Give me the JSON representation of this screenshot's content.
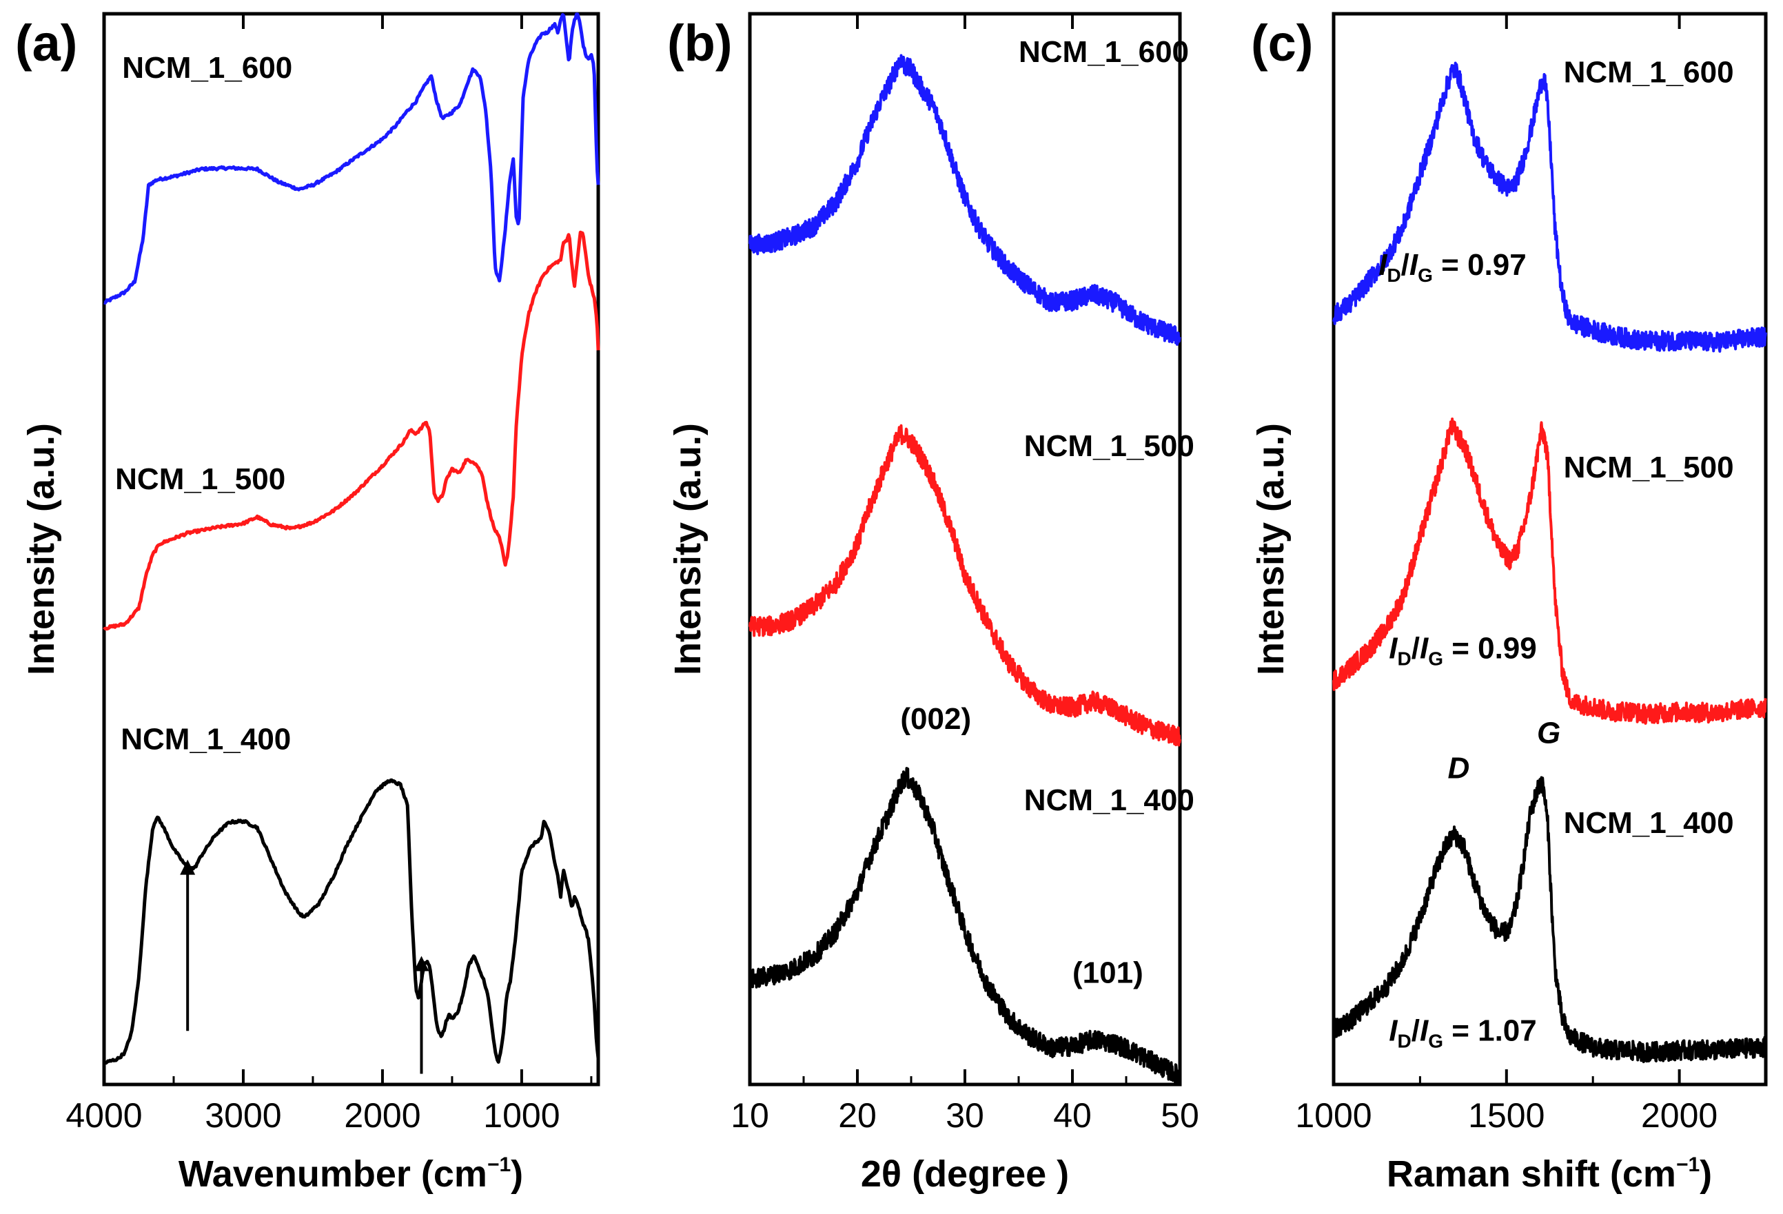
{
  "chart_data": [
    {
      "type": "line",
      "panel": "(a)",
      "xlabel": "Wavenumber (cm",
      "xlabel_sup": "−1",
      "xlabel_end": ")",
      "ylabel": "Intensity (a.u.)",
      "xlim": [
        4000,
        450
      ],
      "ylim": [
        0,
        100
      ],
      "xticks": [
        4000,
        3000,
        2000,
        1000
      ],
      "annotations": [],
      "arrows": [
        {
          "x": 3400,
          "from": 5,
          "to": 21
        },
        {
          "x": 1720,
          "from": 1,
          "to": 12
        }
      ],
      "series": [
        {
          "name": "NCM_1_600",
          "color": "#1a1aff",
          "label_x": 3870,
          "label_y": 94,
          "x": [
            4000,
            3850,
            3780,
            3720,
            3680,
            3620,
            3500,
            3300,
            3100,
            2900,
            2750,
            2600,
            2500,
            2350,
            2200,
            2000,
            1900,
            1830,
            1760,
            1700,
            1650,
            1610,
            1570,
            1500,
            1440,
            1400,
            1350,
            1300,
            1260,
            1220,
            1190,
            1160,
            1120,
            1090,
            1060,
            1040,
            1020,
            990,
            950,
            900,
            850,
            820,
            790,
            760,
            740,
            720,
            700,
            680,
            660,
            640,
            620,
            600,
            580,
            560,
            540,
            520,
            500,
            480,
            460,
            450
          ],
          "y": [
            73,
            74,
            75,
            79,
            84,
            84.5,
            84.8,
            85.5,
            85.6,
            85.5,
            84.3,
            83.6,
            84.0,
            85.1,
            86.5,
            88.3,
            89.6,
            90.8,
            91.8,
            93.2,
            94.2,
            91.8,
            90.2,
            90.8,
            91.6,
            93.2,
            94.8,
            94.2,
            91.2,
            85.2,
            76.2,
            75.0,
            79.5,
            84.0,
            86.5,
            81.2,
            80.0,
            92.2,
            95.7,
            97.2,
            98.2,
            98.2,
            98.7,
            99.0,
            98.2,
            99.5,
            100,
            97.6,
            95.3,
            98.2,
            99.5,
            100,
            99.0,
            97.2,
            96.2,
            95.8,
            96.2,
            95.0,
            86.0,
            84.0
          ]
        },
        {
          "name": "NCM_1_500",
          "color": "#ff1a1a",
          "label_x": 3920,
          "label_y": 55.6,
          "x": [
            4000,
            3850,
            3750,
            3700,
            3650,
            3600,
            3400,
            3200,
            3000,
            2900,
            2800,
            2650,
            2500,
            2350,
            2200,
            2000,
            1850,
            1800,
            1760,
            1720,
            1690,
            1660,
            1630,
            1600,
            1570,
            1540,
            1500,
            1450,
            1400,
            1350,
            1320,
            1280,
            1250,
            1220,
            1200,
            1180,
            1160,
            1140,
            1120,
            1100,
            1080,
            1060,
            1040,
            1000,
            950,
            900,
            850,
            800,
            760,
            720,
            700,
            680,
            660,
            640,
            620,
            600,
            580,
            560,
            540,
            520,
            500,
            480,
            460,
            450
          ],
          "y": [
            42.6,
            43.0,
            44.5,
            47.5,
            49.5,
            50.5,
            51.5,
            52.0,
            52.4,
            53.0,
            52.3,
            51.9,
            52.5,
            53.6,
            55.2,
            57.8,
            60.0,
            61.1,
            60.8,
            61.3,
            61.9,
            61.0,
            55.3,
            54.5,
            55.0,
            56.5,
            57.5,
            57.1,
            58.3,
            58.2,
            57.8,
            56.8,
            54.5,
            53.0,
            52.0,
            51.5,
            51.0,
            50.0,
            48.5,
            49.5,
            52.0,
            55.0,
            61.3,
            68.0,
            72.0,
            74.0,
            75.5,
            76.3,
            76.7,
            77.0,
            78.6,
            78.8,
            79.5,
            76.7,
            74.5,
            77.0,
            79.5,
            79.5,
            77.5,
            75.5,
            74.5,
            73.5,
            71.5,
            68.5
          ]
        },
        {
          "name": "NCM_1_400",
          "color": "#000000",
          "label_x": 3880,
          "label_y": 31.3,
          "x": [
            4000,
            3900,
            3850,
            3800,
            3750,
            3700,
            3650,
            3620,
            3580,
            3500,
            3400,
            3350,
            3300,
            3200,
            3100,
            3000,
            2900,
            2800,
            2700,
            2600,
            2560,
            2450,
            2350,
            2250,
            2150,
            2050,
            1950,
            1870,
            1820,
            1790,
            1760,
            1740,
            1720,
            1700,
            1680,
            1660,
            1640,
            1620,
            1600,
            1580,
            1560,
            1540,
            1520,
            1500,
            1460,
            1420,
            1380,
            1340,
            1300,
            1270,
            1240,
            1210,
            1190,
            1170,
            1150,
            1130,
            1110,
            1080,
            1050,
            1020,
            1000,
            970,
            940,
            910,
            880,
            860,
            840,
            820,
            800,
            780,
            760,
            740,
            720,
            700,
            680,
            660,
            640,
            620,
            600,
            580,
            560,
            540,
            520,
            500,
            480,
            460,
            450
          ],
          "y": [
            2.0,
            2.4,
            3.0,
            5.0,
            10.0,
            18.5,
            24.0,
            25.0,
            24.2,
            22.0,
            20.2,
            20.2,
            21.4,
            23.3,
            24.5,
            24.6,
            24.0,
            21.0,
            18.0,
            16.0,
            15.6,
            17.0,
            19.5,
            22.5,
            25.0,
            27.4,
            28.4,
            28.0,
            26.0,
            16.0,
            9.0,
            8.0,
            9.7,
            11.3,
            11.5,
            11.0,
            9.0,
            6.5,
            5.0,
            4.5,
            5.0,
            6.0,
            6.5,
            6.2,
            6.7,
            8.4,
            11.2,
            12.0,
            10.5,
            9.7,
            8.1,
            5.0,
            3.0,
            2.0,
            3.0,
            5.0,
            8.0,
            9.8,
            13.0,
            17.0,
            20.0,
            21.0,
            22.0,
            22.5,
            22.8,
            23.0,
            24.5,
            24.0,
            23.5,
            22.0,
            20.5,
            19.5,
            17.5,
            20.0,
            19.0,
            18.0,
            16.5,
            17.5,
            17.0,
            16.0,
            15.0,
            14.5,
            13.5,
            11.0,
            8.0,
            3.5,
            2.5
          ]
        }
      ],
      "labels": [
        {
          "text": "NCM_1_600",
          "x": 3870,
          "y": 94
        },
        {
          "text": "NCM_1_500",
          "x": 3920,
          "y": 55.6
        },
        {
          "text": "NCM_1_400",
          "x": 3880,
          "y": 31.3
        }
      ]
    },
    {
      "type": "line",
      "panel": "(b)",
      "xlabel": "2θ (degree )",
      "xlabel_sup": "",
      "xlabel_end": "",
      "ylabel": "Intensity (a.u.)",
      "xlim": [
        10,
        50
      ],
      "ylim": [
        0,
        100
      ],
      "xticks": [
        10,
        20,
        30,
        40,
        50
      ],
      "arrows": [],
      "series": [
        {
          "name": "NCM_1_600",
          "color": "#1a1aff",
          "x": [
            10,
            12,
            14,
            16,
            18,
            20,
            21,
            22,
            23,
            24,
            24.5,
            25,
            26,
            27,
            28,
            29,
            30,
            31,
            32,
            34,
            36,
            38,
            40,
            42,
            44,
            46,
            48,
            50
          ],
          "y": [
            78.4,
            78.6,
            79.2,
            80.2,
            82.4,
            86.2,
            89.0,
            91.5,
            93.5,
            95.8,
            95.0,
            94.8,
            93.0,
            91.5,
            89.0,
            85.7,
            82.8,
            80.6,
            78.8,
            76.2,
            74.5,
            73.0,
            73.2,
            73.8,
            73.0,
            71.5,
            70.5,
            69.8
          ]
        },
        {
          "name": "NCM_1_500",
          "color": "#ff1a1a",
          "x": [
            10,
            12,
            14,
            16,
            18,
            20,
            21,
            22,
            23,
            24,
            24.5,
            25,
            26,
            27,
            28,
            29,
            30,
            31,
            32,
            34,
            36,
            38,
            40,
            42,
            44,
            46,
            48,
            50
          ],
          "y": [
            42.8,
            42.8,
            43.4,
            44.7,
            46.8,
            50.5,
            53.5,
            56.2,
            58.7,
            60.8,
            60.5,
            60.0,
            58.5,
            56.5,
            53.8,
            51.0,
            47.5,
            45.5,
            43.3,
            39.5,
            37.0,
            35.4,
            35.2,
            35.8,
            35.0,
            33.8,
            33.0,
            32.5
          ]
        },
        {
          "name": "NCM_1_400",
          "color": "#000000",
          "x": [
            10,
            12,
            14,
            16,
            18,
            20,
            21,
            22,
            23,
            24,
            24.5,
            25,
            26,
            27,
            28,
            29,
            30,
            31,
            32,
            34,
            36,
            38,
            40,
            42,
            44,
            46,
            48,
            50
          ],
          "y": [
            9.8,
            10.2,
            10.8,
            12.0,
            14.3,
            18.0,
            20.8,
            23.2,
            25.5,
            28.0,
            28.8,
            28.2,
            26.5,
            24.0,
            20.5,
            17.5,
            14.3,
            11.8,
            9.5,
            6.3,
            4.5,
            3.4,
            3.6,
            4.2,
            3.8,
            2.9,
            1.8,
            0.8
          ]
        }
      ],
      "labels": [
        {
          "text": "NCM_1_600",
          "x": 35,
          "y": 95.5
        },
        {
          "text": "NCM_1_500",
          "x": 35.5,
          "y": 58.7
        },
        {
          "text": "NCM_1_400",
          "x": 35.5,
          "y": 25.6
        },
        {
          "text": "(002)",
          "x": 24,
          "y": 33.2
        },
        {
          "text": "(101)",
          "x": 40,
          "y": 9.5
        }
      ]
    },
    {
      "type": "line",
      "panel": "(c)",
      "xlabel": "Raman shift (cm",
      "xlabel_sup": "−1",
      "xlabel_end": ")",
      "ylabel": "Intensity (a.u.)",
      "xlim": [
        1000,
        2250
      ],
      "ylim": [
        0,
        100
      ],
      "xticks": [
        1000,
        1500,
        2000
      ],
      "arrows": [],
      "series": [
        {
          "name": "NCM_1_600",
          "color": "#1a1aff",
          "x": [
            1000,
            1050,
            1100,
            1150,
            1200,
            1250,
            1290,
            1320,
            1340,
            1350,
            1360,
            1380,
            1400,
            1440,
            1480,
            1510,
            1530,
            1550,
            1570,
            1590,
            1600,
            1610,
            1620,
            1630,
            1640,
            1660,
            1680,
            1700,
            1750,
            1800,
            1850,
            1900,
            2000,
            2100,
            2200,
            2250
          ],
          "y": [
            71.8,
            73.0,
            75.0,
            77.0,
            80.0,
            85.0,
            89.0,
            92.5,
            94.5,
            94.8,
            94.3,
            92.0,
            89.0,
            86.0,
            84.3,
            83.6,
            84.5,
            86.5,
            89.0,
            92.0,
            93.5,
            94.0,
            91.0,
            86.0,
            80.0,
            74.0,
            71.5,
            71.0,
            70.5,
            70.0,
            69.7,
            69.4,
            69.5,
            69.3,
            69.7,
            69.8
          ]
        },
        {
          "name": "NCM_1_500",
          "color": "#ff1a1a",
          "x": [
            1000,
            1050,
            1100,
            1150,
            1200,
            1250,
            1290,
            1320,
            1340,
            1350,
            1360,
            1380,
            1400,
            1440,
            1480,
            1510,
            1530,
            1550,
            1570,
            1590,
            1600,
            1610,
            1620,
            1630,
            1640,
            1660,
            1680,
            1700,
            1750,
            1800,
            1850,
            1900,
            2000,
            2100,
            2200,
            2250
          ],
          "y": [
            37.7,
            39.0,
            40.5,
            42.5,
            45.5,
            51.0,
            55.5,
            59.0,
            61.5,
            61.0,
            60.5,
            59.5,
            57.5,
            53.5,
            50.0,
            49.0,
            49.8,
            52.0,
            55.0,
            59.0,
            61.0,
            60.5,
            58.0,
            52.0,
            45.5,
            39.0,
            36.2,
            35.6,
            35.3,
            34.8,
            34.9,
            34.6,
            34.8,
            34.7,
            35.1,
            35.2
          ]
        },
        {
          "name": "NCM_1_400",
          "color": "#000000",
          "x": [
            1000,
            1050,
            1100,
            1150,
            1200,
            1250,
            1290,
            1320,
            1340,
            1350,
            1360,
            1380,
            1400,
            1440,
            1480,
            1510,
            1530,
            1550,
            1570,
            1590,
            1600,
            1610,
            1620,
            1630,
            1640,
            1660,
            1680,
            1700,
            1750,
            1800,
            1850,
            1900,
            2000,
            2100,
            2200,
            2250
          ],
          "y": [
            5.2,
            6.0,
            7.5,
            9.0,
            11.5,
            15.5,
            19.5,
            22.0,
            23.0,
            23.3,
            23.0,
            22.0,
            19.5,
            16.0,
            14.0,
            14.5,
            17.0,
            21.0,
            25.5,
            27.5,
            28.5,
            27.0,
            24.0,
            17.0,
            11.0,
            6.3,
            4.6,
            4.2,
            3.5,
            3.2,
            3.2,
            3.0,
            3.2,
            3.2,
            3.4,
            3.5
          ]
        }
      ],
      "labels": [
        {
          "text": "NCM_1_600",
          "x": 1665,
          "y": 93.6
        },
        {
          "text": "NCM_1_500",
          "x": 1665,
          "y": 56.7
        },
        {
          "text": "NCM_1_400",
          "x": 1665,
          "y": 23.5
        },
        {
          "text": "D",
          "x": 1330,
          "y": 28.6,
          "italic": true
        },
        {
          "text": "G",
          "x": 1588,
          "y": 31.9,
          "italic": true
        }
      ],
      "ratios": [
        {
          "I": "I",
          "D": "D",
          "G": "G",
          "value": "= 0.97",
          "x": 1130,
          "y": 75.6
        },
        {
          "I": "I",
          "D": "D",
          "G": "G",
          "value": "= 0.99",
          "x": 1160,
          "y": 39.8
        },
        {
          "I": "I",
          "D": "D",
          "G": "G",
          "value": "= 1.07",
          "x": 1160,
          "y": 4.1
        }
      ]
    }
  ]
}
